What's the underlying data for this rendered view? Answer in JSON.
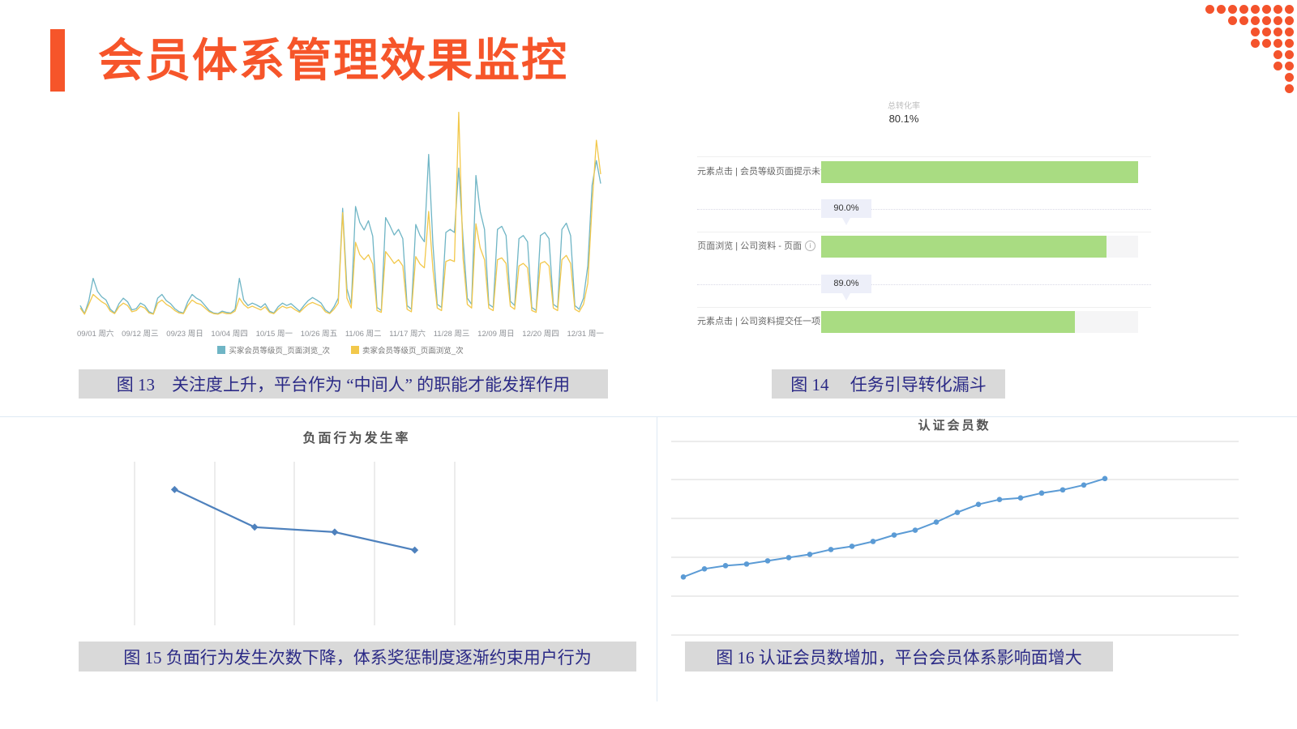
{
  "slide": {
    "title": "会员体系管理效果监控",
    "accent_color": "#F6552A"
  },
  "decor": {
    "dot_rows": [
      8,
      6,
      4,
      4,
      2,
      2,
      1,
      1
    ],
    "dot_color": "#F4532C"
  },
  "figures": {
    "fig13": {
      "caption": "图 13　关注度上升，平台作为 “中间人” 的职能才能发挥作用"
    },
    "fig14": {
      "caption": "图 14　 任务引导转化漏斗"
    },
    "fig15": {
      "caption": "图 15 负面行为发生次数下降，体系奖惩制度逐渐约束用户行为"
    },
    "fig16": {
      "caption": "图 16 认证会员数增加，平台会员体系影响面增大"
    }
  },
  "chart_data": [
    {
      "id": "fig13-trend",
      "type": "line",
      "title": "",
      "x_ticks": [
        "09/01 周六",
        "09/12 周三",
        "09/23 周日",
        "10/04 周四",
        "10/15 周一",
        "10/26 周五",
        "11/06 周二",
        "11/17 周六",
        "11/28 周三",
        "12/09 周日",
        "12/20 周四",
        "12/31 周一"
      ],
      "ylim": [
        0,
        340
      ],
      "grid": false,
      "legend_position": "bottom",
      "series": [
        {
          "name": "买家会员等级页_页面浏览_次",
          "color": "#6FB5C5",
          "values": [
            18,
            5,
            26,
            62,
            41,
            32,
            27,
            12,
            6,
            21,
            30,
            24,
            11,
            13,
            22,
            18,
            8,
            5,
            30,
            36,
            26,
            21,
            13,
            8,
            6,
            24,
            36,
            30,
            26,
            18,
            10,
            6,
            5,
            9,
            7,
            6,
            12,
            62,
            27,
            18,
            22,
            19,
            15,
            21,
            9,
            6,
            16,
            22,
            18,
            21,
            15,
            9,
            18,
            26,
            31,
            27,
            22,
            11,
            6,
            16,
            30,
            175,
            45,
            20,
            178,
            152,
            140,
            155,
            130,
            15,
            10,
            160,
            147,
            132,
            141,
            126,
            18,
            12,
            149,
            131,
            121,
            262,
            116,
            20,
            15,
            136,
            141,
            136,
            240,
            126,
            30,
            20,
            228,
            170,
            141,
            20,
            15,
            141,
            146,
            131,
            25,
            18,
            126,
            131,
            121,
            15,
            10,
            131,
            136,
            126,
            20,
            15,
            141,
            151,
            131,
            18,
            12,
            30,
            82,
            212,
            252,
            215
          ]
        },
        {
          "name": "卖家会员等级页_页面浏览_次",
          "color": "#F2C84B",
          "values": [
            14,
            4,
            20,
            36,
            30,
            24,
            20,
            9,
            5,
            16,
            22,
            18,
            8,
            10,
            17,
            14,
            6,
            4,
            22,
            27,
            20,
            16,
            10,
            6,
            5,
            18,
            27,
            22,
            20,
            14,
            8,
            5,
            4,
            7,
            5,
            5,
            9,
            30,
            20,
            14,
            17,
            14,
            11,
            16,
            7,
            5,
            12,
            17,
            14,
            16,
            11,
            7,
            14,
            20,
            23,
            20,
            17,
            8,
            5,
            12,
            22,
            168,
            30,
            14,
            120,
            100,
            92,
            100,
            85,
            10,
            7,
            105,
            96,
            86,
            92,
            82,
            12,
            8,
            97,
            85,
            79,
            170,
            76,
            14,
            10,
            89,
            92,
            89,
            330,
            95,
            20,
            14,
            150,
            111,
            92,
            14,
            10,
            92,
            95,
            86,
            17,
            12,
            82,
            86,
            79,
            10,
            7,
            86,
            89,
            82,
            14,
            10,
            92,
            99,
            86,
            12,
            8,
            20,
            54,
            180,
            285,
            230
          ]
        }
      ]
    },
    {
      "id": "fig14-funnel",
      "type": "funnel",
      "header_label": "总转化率",
      "header_value": "80.1%",
      "bar_color": "#A9DC82",
      "steps": [
        {
          "label": "元素点击 | 会员等级页面提示未认证",
          "bar_pct": 100
        },
        {
          "label": "页面浏览 | 公司资料 - 页面",
          "bar_pct": 90
        },
        {
          "label": "元素点击 | 公司资料提交任一项",
          "bar_pct": 80.1
        }
      ],
      "conversions": [
        "90.0%",
        "89.0%"
      ]
    },
    {
      "id": "fig15-negative-rate",
      "type": "line",
      "title": "负面行为发生率",
      "color": "#4E81BD",
      "marker": "diamond",
      "x": [
        1,
        2,
        3,
        4
      ],
      "values": [
        83,
        60,
        57,
        46
      ],
      "ylim": [
        0,
        100
      ],
      "grid": "vertical"
    },
    {
      "id": "fig16-certified-members",
      "type": "line",
      "title": "认证会员数",
      "color": "#5B9BD5",
      "marker": "circle",
      "x": [
        1,
        2,
        3,
        4,
        5,
        6,
        7,
        8,
        9,
        10,
        11,
        12,
        13,
        14,
        15,
        16,
        17,
        18,
        19,
        20,
        21
      ],
      "values": [
        18,
        20.5,
        21.5,
        22,
        23,
        24,
        25,
        26.5,
        27.5,
        29,
        31,
        32.5,
        35,
        38,
        40.5,
        42,
        42.5,
        44,
        45,
        46.5,
        48.5
      ],
      "ylim": [
        0,
        60
      ],
      "grid": "horizontal"
    }
  ]
}
